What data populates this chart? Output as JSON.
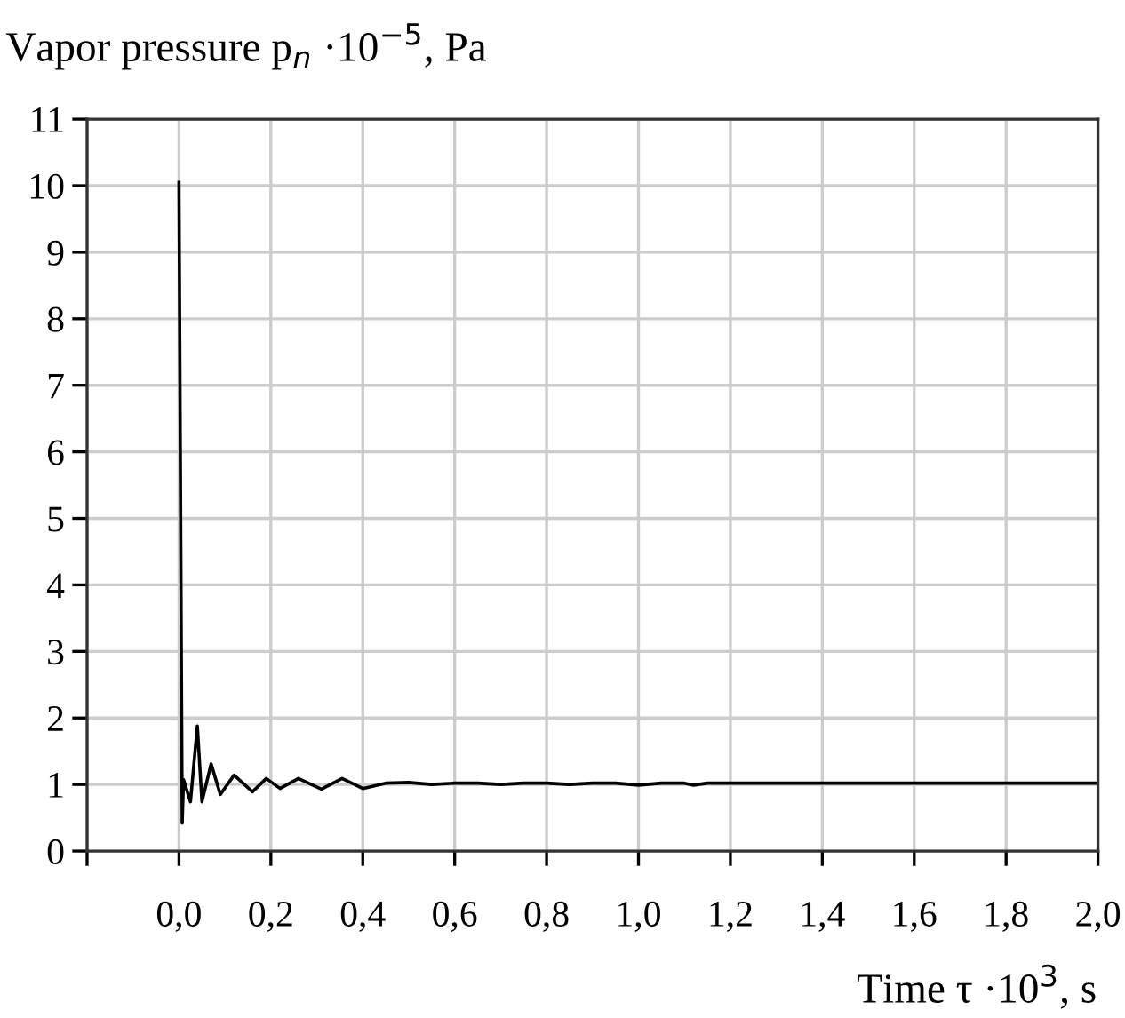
{
  "chart_data": {
    "type": "line",
    "ylabel": "Vapor pressure p$_{n}$ ·10$^{−5}$, Pa",
    "xlabel": "Time τ ·10$^{3}$, s",
    "x": [
      0,
      0.0,
      0.007,
      0.01,
      0.025,
      0.04,
      0.05,
      0.07,
      0.09,
      0.12,
      0.16,
      0.19,
      0.22,
      0.26,
      0.31,
      0.355,
      0.4,
      0.45,
      0.5,
      0.55,
      0.6,
      0.65,
      0.7,
      0.75,
      0.8,
      0.85,
      0.9,
      0.95,
      1.0,
      1.05,
      1.1,
      1.12,
      1.15,
      2.0
    ],
    "series": [
      {
        "color": "#000000",
        "values": [
          10.05,
          10.0,
          0.42,
          1.07,
          0.74,
          1.88,
          0.74,
          1.31,
          0.85,
          1.14,
          0.89,
          1.09,
          0.94,
          1.09,
          0.93,
          1.09,
          0.94,
          1.02,
          1.03,
          1.0,
          1.02,
          1.02,
          1.0,
          1.02,
          1.02,
          1.0,
          1.02,
          1.02,
          0.99,
          1.02,
          1.02,
          0.99,
          1.02,
          1.02
        ]
      }
    ],
    "xlim": [
      -0.2,
      2.0
    ],
    "ylim": [
      0,
      11
    ],
    "xticks": [
      {
        "value": -0.2,
        "label": null
      },
      {
        "value": 0.0,
        "label": "0,0"
      },
      {
        "value": 0.2,
        "label": "0,2"
      },
      {
        "value": 0.4,
        "label": "0,4"
      },
      {
        "value": 0.6,
        "label": "0,6"
      },
      {
        "value": 0.8,
        "label": "0,8"
      },
      {
        "value": 1.0,
        "label": "1,0"
      },
      {
        "value": 1.2,
        "label": "1,2"
      },
      {
        "value": 1.4,
        "label": "1,4"
      },
      {
        "value": 1.6,
        "label": "1,6"
      },
      {
        "value": 1.8,
        "label": "1,8"
      },
      {
        "value": 2.0,
        "label": "2,0"
      }
    ],
    "yticks": [
      0,
      1,
      2,
      3,
      4,
      5,
      6,
      7,
      8,
      9,
      10,
      11
    ],
    "grid": true,
    "marker": "none",
    "line_style": "solid"
  }
}
